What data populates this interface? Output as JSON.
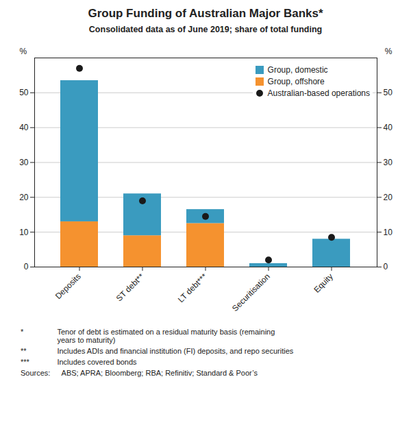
{
  "chart_data": {
    "type": "bar",
    "stacked": true,
    "title": "Group Funding of Australian Major Banks*",
    "subtitle": "Consolidated data as of June 2019; share of total funding",
    "categories": [
      "Deposits",
      "ST debt**",
      "LT debt***",
      "Securitisation",
      "Equity"
    ],
    "series": [
      {
        "name": "Group, domestic",
        "color": "#3a9bbf",
        "values": [
          40.5,
          12.0,
          4.0,
          1.0,
          8.0
        ]
      },
      {
        "name": "Group, offshore",
        "color": "#f5922f",
        "values": [
          13.0,
          9.0,
          12.5,
          0.0,
          0.0
        ]
      },
      {
        "name": "Australian-based operations",
        "type": "scatter",
        "color": "#1a1a1a",
        "values": [
          57.0,
          19.0,
          14.5,
          2.0,
          8.5
        ]
      }
    ],
    "ylim": [
      0,
      60
    ],
    "yticks": [
      0,
      10,
      20,
      30,
      40,
      50
    ],
    "y2lim": [
      0,
      60
    ],
    "y2ticks": [
      0,
      10,
      20,
      30,
      40,
      50
    ],
    "ylabel": "%",
    "y2label": "%",
    "grid": true,
    "legend": "upper right",
    "footnotes": [
      [
        "*",
        "Tenor of debt is estimated on a residual maturity basis (remaining\nyears to maturity)"
      ],
      [
        "**",
        "Includes ADIs and financial institution (FI) deposits, and repo securities"
      ],
      [
        "***",
        "Includes covered bonds"
      ],
      [
        "Sources:",
        "  ABS; APRA; Bloomberg; RBA; Refinitiv; Standard & Poor’s"
      ]
    ]
  }
}
